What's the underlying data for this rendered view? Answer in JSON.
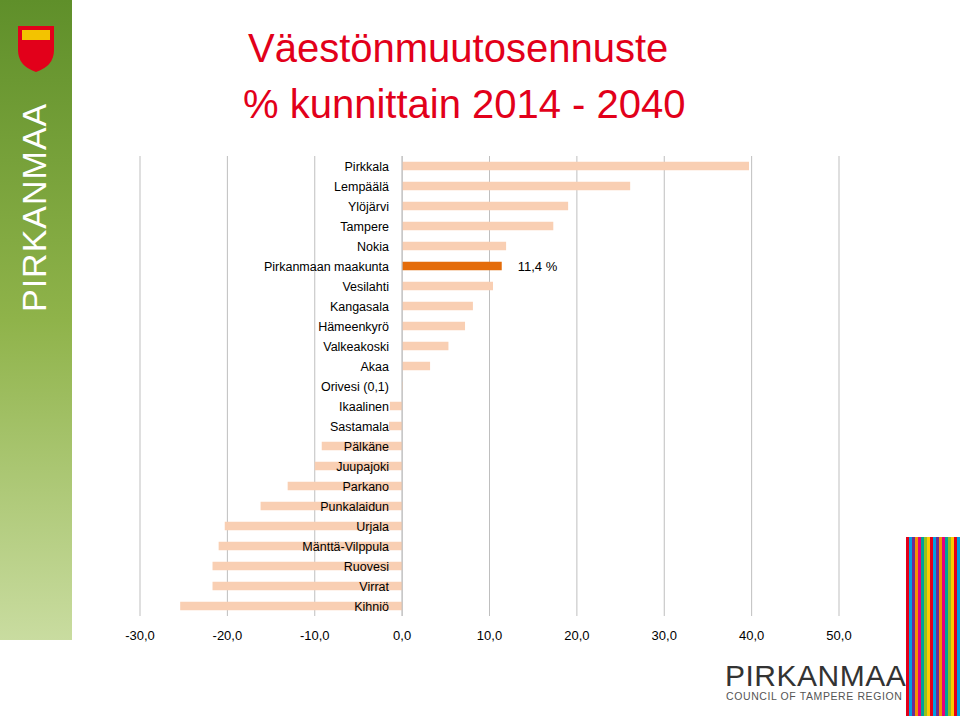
{
  "chart_data": {
    "type": "bar",
    "orientation": "horizontal",
    "title": "Väestönmuutosennuste",
    "subtitle": "% kunnittain 2014 - 2040",
    "categories": [
      "Pirkkala",
      "Lempäälä",
      "Ylöjärvi",
      "Tampere",
      "Nokia",
      "Pirkanmaan maakunta",
      "Vesilahti",
      "Kangasala",
      "Hämeenkyrö",
      "Valkeakoski",
      "Akaa",
      "Orivesi (0,1)",
      "Ikaalinen",
      "Sastamala",
      "Pälkäne",
      "Juupajoki",
      "Parkano",
      "Punkalaidun",
      "Urjala",
      "Mänttä-Vilppula",
      "Ruovesi",
      "Virrat",
      "Kihniö"
    ],
    "values": [
      39.7,
      26.1,
      19.0,
      17.3,
      11.9,
      11.4,
      10.4,
      8.1,
      7.2,
      5.3,
      3.2,
      0.1,
      -1.4,
      -1.5,
      -9.2,
      -10.0,
      -13.1,
      -16.2,
      -20.3,
      -21.0,
      -21.7,
      -21.7,
      -25.4
    ],
    "colors": [
      "#f9cfb3",
      "#f9cfb3",
      "#f9cfb3",
      "#f9cfb3",
      "#f9cfb3",
      "#e46c0a",
      "#f9cfb3",
      "#f9cfb3",
      "#f9cfb3",
      "#f9cfb3",
      "#f9cfb3",
      "#f9cfb3",
      "#f9cfb3",
      "#f9cfb3",
      "#f9cfb3",
      "#f9cfb3",
      "#f9cfb3",
      "#f9cfb3",
      "#f9cfb3",
      "#f9cfb3",
      "#f9cfb3",
      "#f9cfb3",
      "#f9cfb3"
    ],
    "annotations": [
      {
        "text": "11,4 %",
        "category": "Pirkanmaan maakunta"
      }
    ],
    "xlim": [
      -30,
      50
    ],
    "xticks": [
      {
        "value": -30,
        "label": "-30,0"
      },
      {
        "value": -20,
        "label": "-20,0"
      },
      {
        "value": -10,
        "label": "-10,0"
      },
      {
        "value": 0,
        "label": "0,0"
      },
      {
        "value": 10,
        "label": "10,0"
      },
      {
        "value": 20,
        "label": "20,0"
      },
      {
        "value": 30,
        "label": "30,0"
      },
      {
        "value": 40,
        "label": "40,0"
      },
      {
        "value": 50,
        "label": "50,0"
      }
    ],
    "grid": true
  },
  "branding": {
    "side_text": "PIRKANMAA",
    "logo_text": "PIRKANMAA",
    "logo_subtext": "COUNCIL OF TAMPERE REGION"
  }
}
